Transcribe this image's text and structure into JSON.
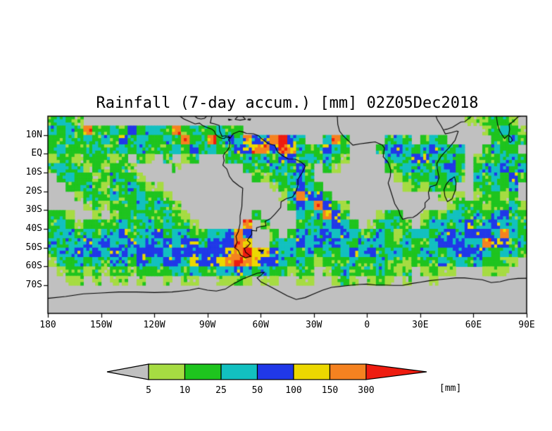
{
  "chart": {
    "title": "Rainfall (7-day accum.) [mm] 02Z05Dec2018",
    "units_label": "[mm]"
  },
  "chart_data": {
    "type": "heatmap",
    "title": "Rainfall (7-day accum.) [mm] 02Z05Dec2018",
    "projection": "latlon",
    "lon_range": [
      -180,
      90
    ],
    "lat_range": [
      -85,
      20
    ],
    "lon_ticks": [
      {
        "label": "180",
        "deg": -180
      },
      {
        "label": "150W",
        "deg": -150
      },
      {
        "label": "120W",
        "deg": -120
      },
      {
        "label": "90W",
        "deg": -90
      },
      {
        "label": "60W",
        "deg": -60
      },
      {
        "label": "30W",
        "deg": -30
      },
      {
        "label": "0",
        "deg": 0
      },
      {
        "label": "30E",
        "deg": 30
      },
      {
        "label": "60E",
        "deg": 60
      },
      {
        "label": "90E",
        "deg": 90
      }
    ],
    "lat_ticks": [
      {
        "label": "10N",
        "deg": 10
      },
      {
        "label": "EQ",
        "deg": 0
      },
      {
        "label": "10S",
        "deg": -10
      },
      {
        "label": "20S",
        "deg": -20
      },
      {
        "label": "30S",
        "deg": -30
      },
      {
        "label": "40S",
        "deg": -40
      },
      {
        "label": "50S",
        "deg": -50
      },
      {
        "label": "60S",
        "deg": -60
      },
      {
        "label": "70S",
        "deg": -70
      }
    ],
    "colors": {
      "background": "#c0c0c0",
      "coastline": "#000000",
      "frame": "#000000"
    },
    "colorbar": {
      "levels": [
        5,
        10,
        25,
        50,
        100,
        150,
        300
      ],
      "bin_colors": [
        "#c0c0c0",
        "#a6dc42",
        "#1ec41e",
        "#12c0c0",
        "#2038e8",
        "#ecd800",
        "#f58220",
        "#ee1c10"
      ],
      "bin_labels": [
        "<5",
        "5-10",
        "10-25",
        "25-50",
        "50-100",
        "100-150",
        "150-300",
        ">300"
      ]
    },
    "grid": {
      "cell_deg": 5,
      "note": "rainfall bins 0-7 on 5-degree cells; row 0 = lat 20N..15N, col 0 = lon 180W..175W",
      "rows": [
        "232100000000000000000000000000000000000000000001122210",
        "323262232423326232232200000000000000000000000000012321",
        "223232324232232623624354467420036200002320232000002232",
        "232223223232223242322446647532243200023432343230023220",
        "122122212021020120002232324423232100003324432320122332",
        "232212122100001000000022233242021000002233323420233423",
        "023221232210000000000002122332000000000122232320323242",
        "002232122321100000000000012243200000000012122200223230",
        "000122232232210000000000001364420000000000001110122120",
        "000012122232321000000000000243642100000000000122212231",
        "221001012232232100000002000032364200012200122332323422",
        "232122223223232210000060200023234320123220233234234332",
        "233232334233423322334640020233343432232123323434443632",
        "323343433434343443444650023343434323332232234443364423",
        "233434344344434444445675543323232343423322332344432332",
        "122323233243344354456765443232122232232212223232322210",
        "012212122122223232233432322122012322232120121100011100",
        "001101011010010110011210110011001210121010010000000000",
        "000000000000000000000000000000000000000000000000000000",
        "000000000000000000000000000000000000000000000000000000",
        "000000000000000000000000000000000000000000000000000000"
      ]
    },
    "coastlines": {
      "south_america": [
        [
          -77,
          8.5
        ],
        [
          -75.5,
          10.6
        ],
        [
          -72,
          12
        ],
        [
          -70,
          11.6
        ],
        [
          -68,
          10.8
        ],
        [
          -64,
          10.6
        ],
        [
          -61,
          9.5
        ],
        [
          -60,
          8.4
        ],
        [
          -56,
          5.6
        ],
        [
          -52,
          4.4
        ],
        [
          -50.5,
          1
        ],
        [
          -48,
          -0.8
        ],
        [
          -44.5,
          -2.8
        ],
        [
          -40.5,
          -2.9
        ],
        [
          -37,
          -4.5
        ],
        [
          -34.8,
          -6.5
        ],
        [
          -36.5,
          -10
        ],
        [
          -39,
          -13.5
        ],
        [
          -39,
          -17
        ],
        [
          -40.3,
          -20.5
        ],
        [
          -42,
          -23
        ],
        [
          -45.5,
          -23.9
        ],
        [
          -48.5,
          -25.6
        ],
        [
          -48.7,
          -28.6
        ],
        [
          -52,
          -32.2
        ],
        [
          -54.5,
          -34.6
        ],
        [
          -57.5,
          -36
        ],
        [
          -57,
          -38.3
        ],
        [
          -60.5,
          -38.9
        ],
        [
          -62.3,
          -39.4
        ],
        [
          -62.3,
          -41.1
        ],
        [
          -65.1,
          -40.8
        ],
        [
          -65,
          -42.9
        ],
        [
          -67.6,
          -46.1
        ],
        [
          -65.8,
          -47.6
        ],
        [
          -67.6,
          -49.6
        ],
        [
          -69.2,
          -50.4
        ],
        [
          -68.5,
          -52.4
        ],
        [
          -65.6,
          -54.6
        ],
        [
          -68.6,
          -55.4
        ],
        [
          -71.4,
          -54
        ],
        [
          -72.6,
          -51.5
        ],
        [
          -74.6,
          -50.1
        ],
        [
          -73.3,
          -47
        ],
        [
          -73.9,
          -44
        ],
        [
          -72.6,
          -41.5
        ],
        [
          -71.6,
          -37.2
        ],
        [
          -71.6,
          -33.1
        ],
        [
          -70.6,
          -28.1
        ],
        [
          -70.4,
          -23.2
        ],
        [
          -70.1,
          -18.4
        ],
        [
          -72.2,
          -17.1
        ],
        [
          -75.6,
          -14.6
        ],
        [
          -77.6,
          -12.1
        ],
        [
          -79.1,
          -8.1
        ],
        [
          -81.3,
          -6.1
        ],
        [
          -80.6,
          -3.6
        ],
        [
          -81.1,
          -1.1
        ],
        [
          -80.1,
          0.6
        ],
        [
          -78.9,
          1.6
        ],
        [
          -77.6,
          3.6
        ],
        [
          -77.3,
          6.1
        ],
        [
          -78.1,
          7.6
        ],
        [
          -77,
          8.5
        ]
      ],
      "central_america_pacific": [
        [
          -105.5,
          20
        ],
        [
          -103.5,
          18.6
        ],
        [
          -101,
          17.6
        ],
        [
          -97,
          15.9
        ],
        [
          -94.5,
          16.3
        ],
        [
          -92.5,
          14.9
        ],
        [
          -90,
          13.9
        ],
        [
          -87.5,
          13.1
        ],
        [
          -86,
          11.9
        ],
        [
          -85.6,
          10.6
        ],
        [
          -84.9,
          9.9
        ],
        [
          -83.6,
          8.9
        ],
        [
          -82.1,
          8.3
        ],
        [
          -80.6,
          8.1
        ],
        [
          -79.6,
          8.9
        ],
        [
          -78.6,
          8.6
        ],
        [
          -77,
          8.5
        ]
      ],
      "central_america_caribbean": [
        [
          -87.2,
          21
        ],
        [
          -87.8,
          19.1
        ],
        [
          -88.4,
          16.4
        ],
        [
          -85.9,
          15.9
        ],
        [
          -83.4,
          15.1
        ],
        [
          -83.1,
          12.1
        ],
        [
          -81.8,
          9.3
        ],
        [
          -79.9,
          9.6
        ],
        [
          -78.5,
          9.4
        ],
        [
          -77,
          8.5
        ]
      ],
      "gulf_of_mexico": [
        [
          -97.2,
          20
        ],
        [
          -95.6,
          18.9
        ],
        [
          -93.6,
          18.5
        ],
        [
          -91.6,
          18.9
        ],
        [
          -90.6,
          19.9
        ],
        [
          -90.3,
          20
        ]
      ],
      "hispaniola": [
        [
          -74.5,
          18.3
        ],
        [
          -71.6,
          17.9
        ],
        [
          -68.6,
          18.4
        ],
        [
          -70.1,
          19.9
        ],
        [
          -72.9,
          19.9
        ],
        [
          -74.5,
          18.3
        ]
      ],
      "jamaica": [
        [
          -78.3,
          18.5
        ],
        [
          -76.6,
          18.1
        ],
        [
          -77.9,
          17.8
        ],
        [
          -78.3,
          18.5
        ]
      ],
      "puerto_rico": [
        [
          -67.2,
          18.5
        ],
        [
          -65.7,
          18.5
        ],
        [
          -66,
          17.9
        ],
        [
          -67.2,
          18.1
        ],
        [
          -67.2,
          18.5
        ]
      ],
      "falklands": [
        [
          -61.3,
          -51.4
        ],
        [
          -58.4,
          -51.3
        ],
        [
          -59.4,
          -52.3
        ],
        [
          -61.3,
          -51.4
        ]
      ],
      "africa": [
        [
          -16.8,
          20
        ],
        [
          -16.5,
          15.5
        ],
        [
          -15.5,
          12
        ],
        [
          -13.5,
          9.6
        ],
        [
          -8,
          4.6
        ],
        [
          -4,
          5.3
        ],
        [
          1,
          5.9
        ],
        [
          4.6,
          6.3
        ],
        [
          8.6,
          4.6
        ],
        [
          9.8,
          3.1
        ],
        [
          9.4,
          0.6
        ],
        [
          9.1,
          -1.6
        ],
        [
          11.9,
          -4.6
        ],
        [
          13.4,
          -8.6
        ],
        [
          13.1,
          -12.1
        ],
        [
          11.9,
          -15.6
        ],
        [
          14.1,
          -22.1
        ],
        [
          15.6,
          -26.6
        ],
        [
          17.9,
          -30.1
        ],
        [
          18.6,
          -32.6
        ],
        [
          20.1,
          -34.9
        ],
        [
          23.1,
          -34.1
        ],
        [
          25.9,
          -33.9
        ],
        [
          28.1,
          -32.6
        ],
        [
          30.6,
          -30.6
        ],
        [
          32.7,
          -28.6
        ],
        [
          32.7,
          -26.1
        ],
        [
          35.1,
          -23.9
        ],
        [
          34.6,
          -20.6
        ],
        [
          35.6,
          -17.6
        ],
        [
          39.1,
          -16.6
        ],
        [
          40.6,
          -12.6
        ],
        [
          39.6,
          -8.1
        ],
        [
          39.4,
          -5.1
        ],
        [
          41.6,
          -1.6
        ],
        [
          43.1,
          0.1
        ],
        [
          46.1,
          3.1
        ],
        [
          49.6,
          7.1
        ],
        [
          51.4,
          11.9
        ],
        [
          50.6,
          12.1
        ],
        [
          47.6,
          11.3
        ],
        [
          44.1,
          10.6
        ],
        [
          42.9,
          12.9
        ],
        [
          41.6,
          15.1
        ],
        [
          39.6,
          18.1
        ],
        [
          38.9,
          20
        ]
      ],
      "madagascar": [
        [
          49.3,
          -12.2
        ],
        [
          50.2,
          -15.6
        ],
        [
          49.9,
          -19.1
        ],
        [
          47.9,
          -24.1
        ],
        [
          45.3,
          -25.5
        ],
        [
          43.9,
          -22.6
        ],
        [
          43.4,
          -19.1
        ],
        [
          44.6,
          -16.3
        ],
        [
          46.6,
          -13.9
        ],
        [
          48.1,
          -13.1
        ],
        [
          49.3,
          -12.2
        ]
      ],
      "arabia": [
        [
          43.3,
          12.8
        ],
        [
          45.1,
          13.1
        ],
        [
          48.1,
          14.1
        ],
        [
          52.9,
          16.9
        ],
        [
          55.1,
          17.1
        ],
        [
          57.6,
          18.9
        ],
        [
          58.9,
          20
        ]
      ],
      "india": [
        [
          72.9,
          20
        ],
        [
          73.6,
          15.6
        ],
        [
          74.6,
          12.6
        ],
        [
          76.1,
          10.1
        ],
        [
          77.6,
          8.1
        ],
        [
          78.3,
          8.9
        ],
        [
          79.9,
          10.1
        ],
        [
          80.4,
          13.1
        ],
        [
          80.1,
          15.6
        ],
        [
          82.3,
          17.1
        ],
        [
          85.1,
          19.6
        ],
        [
          86.6,
          20
        ]
      ],
      "sri_lanka": [
        [
          80.1,
          9.8
        ],
        [
          81.3,
          8.6
        ],
        [
          81.9,
          7.1
        ],
        [
          80.9,
          6.1
        ],
        [
          80.1,
          6.4
        ],
        [
          79.9,
          8.1
        ],
        [
          80.1,
          9.8
        ]
      ],
      "antarctica": [
        [
          -180,
          -77
        ],
        [
          -170,
          -76
        ],
        [
          -160,
          -74.6
        ],
        [
          -150,
          -74.1
        ],
        [
          -140,
          -73.6
        ],
        [
          -130,
          -73.6
        ],
        [
          -120,
          -73.9
        ],
        [
          -110,
          -73.6
        ],
        [
          -100,
          -72.6
        ],
        [
          -95,
          -71.6
        ],
        [
          -90,
          -72.6
        ],
        [
          -85,
          -73.1
        ],
        [
          -80,
          -72.1
        ],
        [
          -75,
          -69.1
        ],
        [
          -70,
          -66.6
        ],
        [
          -66,
          -65.1
        ],
        [
          -62,
          -63.6
        ],
        [
          -58,
          -63.1
        ],
        [
          -60,
          -64.9
        ],
        [
          -62,
          -66.1
        ],
        [
          -60,
          -68.1
        ],
        [
          -55,
          -70.6
        ],
        [
          -50,
          -73.1
        ],
        [
          -45,
          -75.6
        ],
        [
          -40,
          -77.6
        ],
        [
          -35,
          -76.6
        ],
        [
          -30,
          -74.6
        ],
        [
          -25,
          -72.6
        ],
        [
          -20,
          -71.1
        ],
        [
          -15,
          -70.6
        ],
        [
          -10,
          -70.1
        ],
        [
          -5,
          -69.6
        ],
        [
          0,
          -69.4
        ],
        [
          5,
          -69.9
        ],
        [
          10,
          -69.9
        ],
        [
          15,
          -70.1
        ],
        [
          20,
          -70.1
        ],
        [
          25,
          -69.1
        ],
        [
          30,
          -68.4
        ],
        [
          35,
          -67.6
        ],
        [
          40,
          -67.1
        ],
        [
          45,
          -66.6
        ],
        [
          50,
          -66.1
        ],
        [
          55,
          -66.1
        ],
        [
          60,
          -66.6
        ],
        [
          65,
          -67.1
        ],
        [
          70,
          -68.6
        ],
        [
          75,
          -68.1
        ],
        [
          80,
          -66.9
        ],
        [
          85,
          -66.4
        ],
        [
          90,
          -66.3
        ]
      ]
    }
  }
}
